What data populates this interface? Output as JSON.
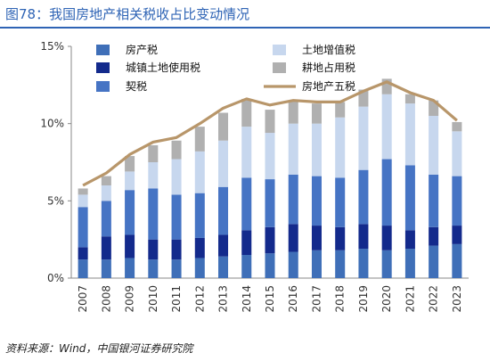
{
  "title": "图78：我国房地产相关税收占比变动情况",
  "source": "资料来源：Wind，中国银河证券研究院",
  "chart_data": {
    "type": "bar",
    "stacked": true,
    "categories": [
      "2007",
      "2008",
      "2009",
      "2010",
      "2011",
      "2012",
      "2013",
      "2014",
      "2015",
      "2016",
      "2017",
      "2018",
      "2019",
      "2020",
      "2021",
      "2022",
      "2023"
    ],
    "ylim": [
      0,
      15
    ],
    "yticks": [
      "0%",
      "5%",
      "10%",
      "15%"
    ],
    "legend_position": "top",
    "series": [
      {
        "name": "房产税",
        "color": "#3f6fb8",
        "values": [
          1.2,
          1.2,
          1.3,
          1.2,
          1.2,
          1.3,
          1.4,
          1.5,
          1.6,
          1.7,
          1.8,
          1.8,
          1.9,
          1.8,
          1.9,
          2.1,
          2.2
        ]
      },
      {
        "name": "城镇土地使用税",
        "color": "#132a8c",
        "values": [
          0.8,
          1.5,
          1.5,
          1.3,
          1.3,
          1.3,
          1.4,
          1.6,
          1.7,
          1.8,
          1.6,
          1.5,
          1.6,
          1.6,
          1.2,
          1.2,
          1.2
        ]
      },
      {
        "name": "契税",
        "color": "#4674c4",
        "values": [
          2.6,
          2.3,
          2.9,
          3.3,
          2.9,
          2.9,
          3.1,
          3.4,
          3.1,
          3.2,
          3.2,
          3.2,
          3.5,
          4.3,
          4.2,
          3.4,
          3.2
        ]
      },
      {
        "name": "土地增值税",
        "color": "#c7d7ee",
        "values": [
          0.8,
          1.0,
          1.2,
          1.7,
          2.3,
          2.7,
          3.0,
          3.3,
          3.0,
          3.3,
          3.4,
          3.9,
          4.1,
          4.2,
          4.0,
          3.8,
          2.9
        ]
      },
      {
        "name": "耕地占用税",
        "color": "#b0b0b0",
        "values": [
          0.4,
          0.6,
          1.0,
          1.1,
          1.2,
          1.6,
          1.8,
          1.8,
          1.5,
          1.5,
          1.3,
          1.0,
          1.1,
          1.0,
          0.6,
          1.0,
          0.6
        ]
      },
      {
        "name": "房地产五税",
        "type": "line",
        "color": "#b8966a",
        "values": [
          6.0,
          6.8,
          8.0,
          8.8,
          9.1,
          10.0,
          11.0,
          11.6,
          11.2,
          11.5,
          11.4,
          11.4,
          12.1,
          12.7,
          12.0,
          11.5,
          10.2
        ]
      }
    ]
  }
}
